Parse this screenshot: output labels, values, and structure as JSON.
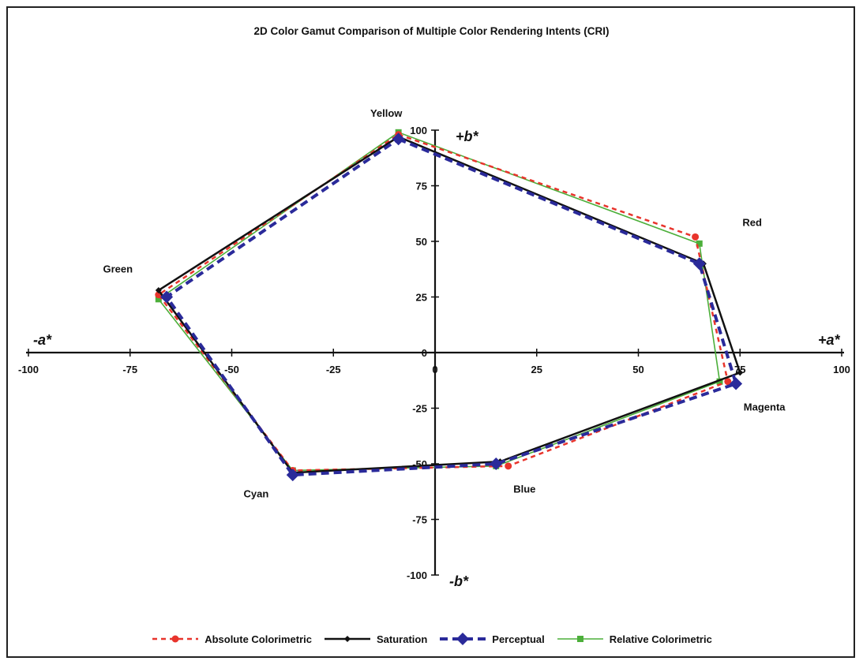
{
  "chart_data": {
    "type": "scatter",
    "title": "2D Color Gamut Comparison of Multiple Color Rendering Intents (CRI)",
    "xlim": [
      -100,
      100
    ],
    "ylim": [
      -100,
      100
    ],
    "x_ticks": [
      "-100",
      "-75",
      "-50",
      "-25",
      "0",
      "25",
      "50",
      "75",
      "100"
    ],
    "y_ticks": [
      "100",
      "75",
      "50",
      "25",
      "0",
      "-25",
      "-50",
      "-75",
      "-100"
    ],
    "axis_labels": {
      "neg_x": "-a*",
      "pos_x": "+a*",
      "pos_y": "+b*",
      "neg_y": "-b*"
    },
    "grid": false,
    "legend_position": "bottom",
    "point_labels": [
      {
        "text": "Yellow",
        "x": -12,
        "y": 106
      },
      {
        "text": "Red",
        "x": 78,
        "y": 57
      },
      {
        "text": "Green",
        "x": -78,
        "y": 36
      },
      {
        "text": "Magenta",
        "x": 81,
        "y": -26
      },
      {
        "text": "Blue",
        "x": 22,
        "y": -63
      },
      {
        "text": "Cyan",
        "x": -44,
        "y": -65
      }
    ],
    "order": [
      "Yellow",
      "Red",
      "Magenta",
      "Blue",
      "Cyan",
      "Green"
    ],
    "series": [
      {
        "name": "Absolute Colorimetric",
        "color": "#e8342c",
        "dash": "dashed",
        "marker": "circle",
        "points": [
          [
            -9,
            98
          ],
          [
            64,
            52
          ],
          [
            72,
            -13
          ],
          [
            18,
            -51
          ],
          [
            -35,
            -53
          ],
          [
            -68,
            26
          ]
        ]
      },
      {
        "name": "Saturation",
        "color": "#111111",
        "dash": "solid",
        "marker": "diamond-small",
        "points": [
          [
            -9,
            97
          ],
          [
            66,
            40
          ],
          [
            75,
            -9
          ],
          [
            16,
            -49
          ],
          [
            -35,
            -54
          ],
          [
            -68,
            28
          ]
        ]
      },
      {
        "name": "Perceptual",
        "color": "#2a2a9a",
        "dash": "dashed",
        "marker": "diamond",
        "points": [
          [
            -9,
            96
          ],
          [
            65,
            40
          ],
          [
            74,
            -14
          ],
          [
            15,
            -50
          ],
          [
            -35,
            -55
          ],
          [
            -66,
            25
          ]
        ]
      },
      {
        "name": "Relative Colorimetric",
        "color": "#4caf3a",
        "dash": "solid",
        "marker": "square",
        "points": [
          [
            -9,
            99
          ],
          [
            65,
            49
          ],
          [
            70,
            -13
          ],
          [
            15,
            -51
          ],
          [
            -35,
            -53
          ],
          [
            -68,
            24
          ]
        ]
      }
    ]
  }
}
